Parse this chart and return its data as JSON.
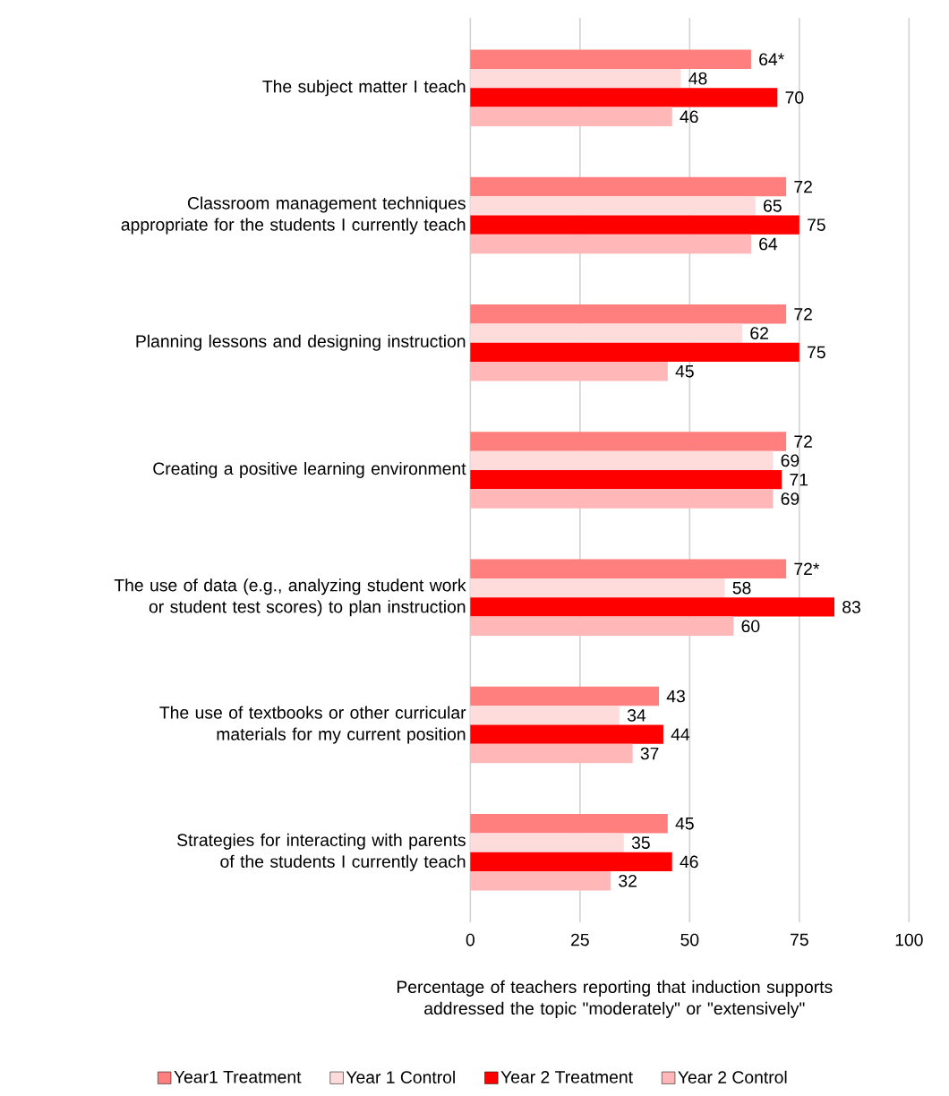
{
  "chart_data": {
    "type": "bar",
    "orientation": "horizontal",
    "xlabel": "Percentage of teachers reporting that induction supports addressed the topic \"moderately\" or \"extensively\"",
    "categories": [
      "The subject matter I teach",
      "Classroom management techniques appropriate for the students I currently teach",
      "Planning lessons and designing instruction",
      "Creating a positive learning environment",
      "The use of data (e.g., analyzing student work or student test scores) to plan instruction",
      "The use of textbooks or other curricular materials for my current position",
      "Strategies for interacting with parents of the students I currently teach"
    ],
    "series": [
      {
        "name": "Year1 Treatment",
        "color": "#ff7f7f",
        "values": [
          64,
          72,
          72,
          72,
          72,
          43,
          45
        ],
        "value_labels": [
          "64*",
          "72",
          "72",
          "72",
          "72*",
          "43",
          "45"
        ]
      },
      {
        "name": "Year 1 Control",
        "color": "#ffdcdc",
        "values": [
          48,
          65,
          62,
          69,
          58,
          34,
          35
        ],
        "value_labels": [
          "48",
          "65",
          "62",
          "69",
          "58",
          "34",
          "35"
        ]
      },
      {
        "name": "Year 2 Treatment",
        "color": "#ff0000",
        "values": [
          70,
          75,
          75,
          71,
          83,
          44,
          46
        ],
        "value_labels": [
          "70",
          "75",
          "75",
          "71",
          "83",
          "44",
          "46"
        ]
      },
      {
        "name": "Year 2 Control",
        "color": "#ffb7b7",
        "values": [
          46,
          64,
          45,
          69,
          60,
          37,
          32
        ],
        "value_labels": [
          "46",
          "64",
          "45",
          "69",
          "60",
          "37",
          "32"
        ]
      }
    ],
    "xlim": [
      0,
      100
    ],
    "xticks": [
      0,
      25,
      50,
      75,
      100
    ],
    "grid": "x",
    "legend": "bottom"
  }
}
